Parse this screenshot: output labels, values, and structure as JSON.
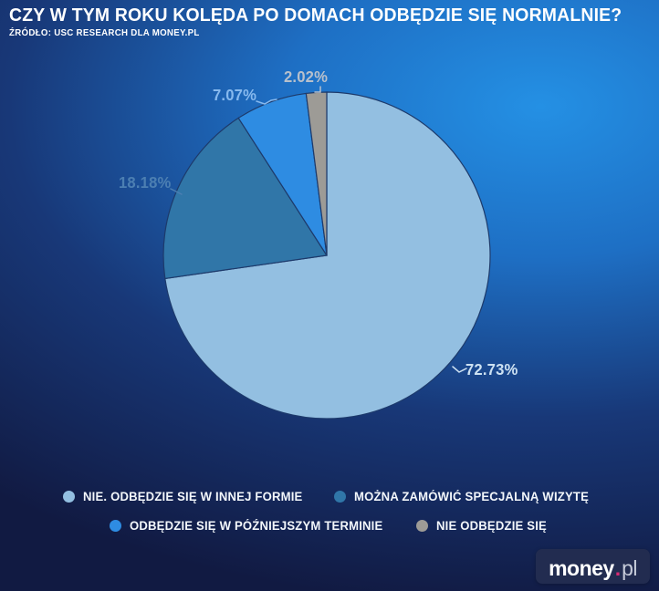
{
  "header": {
    "title": "CZY W TYM ROKU KOLĘDA PO DOMACH ODBĘDZIE SIĘ NORMALNIE?",
    "source": "ŹRÓDŁO: USC RESEARCH DLA MONEY.PL"
  },
  "chart_data": {
    "type": "pie",
    "title": "CZY W TYM ROKU KOLĘDA PO DOMACH ODBĘDZIE SIĘ NORMALNIE?",
    "source": "ŹRÓDŁO: USC RESEARCH DLA MONEY.PL",
    "unit": "%",
    "start_angle": "12 o'clock, clockwise",
    "stroke_color": "#1d3a6b",
    "legend_position": "bottom",
    "background": {
      "dark": "#111A42",
      "bright": "#2490E4"
    },
    "slices": [
      {
        "label": "NIE. ODBĘDZIE SIĘ W INNEJ FORMIE",
        "value": 72.73,
        "display": "72.73%",
        "color": "#93BFE1",
        "label_color": "#CDE1F2"
      },
      {
        "label": "MOŻNA ZAMÓWIĆ SPECJALNĄ WIZYTĘ",
        "value": 18.18,
        "display": "18.18%",
        "color": "#3076A8",
        "label_color": "#4C7FB2"
      },
      {
        "label": "ODBĘDZIE SIĘ W PÓŹNIEJSZYM TERMINIE",
        "value": 7.07,
        "display": "7.07%",
        "color": "#2E8CE2",
        "label_color": "#87B9EE"
      },
      {
        "label": "NIE ODBĘDZIE SIĘ",
        "value": 2.02,
        "display": "2.02%",
        "color": "#9D9B96",
        "label_color": "#B7C0CC"
      }
    ]
  },
  "logo": {
    "text_main": "money",
    "dot": ".",
    "text_suffix": "pl",
    "badge_color": "#222C50",
    "dot_color": "#D92B73"
  }
}
